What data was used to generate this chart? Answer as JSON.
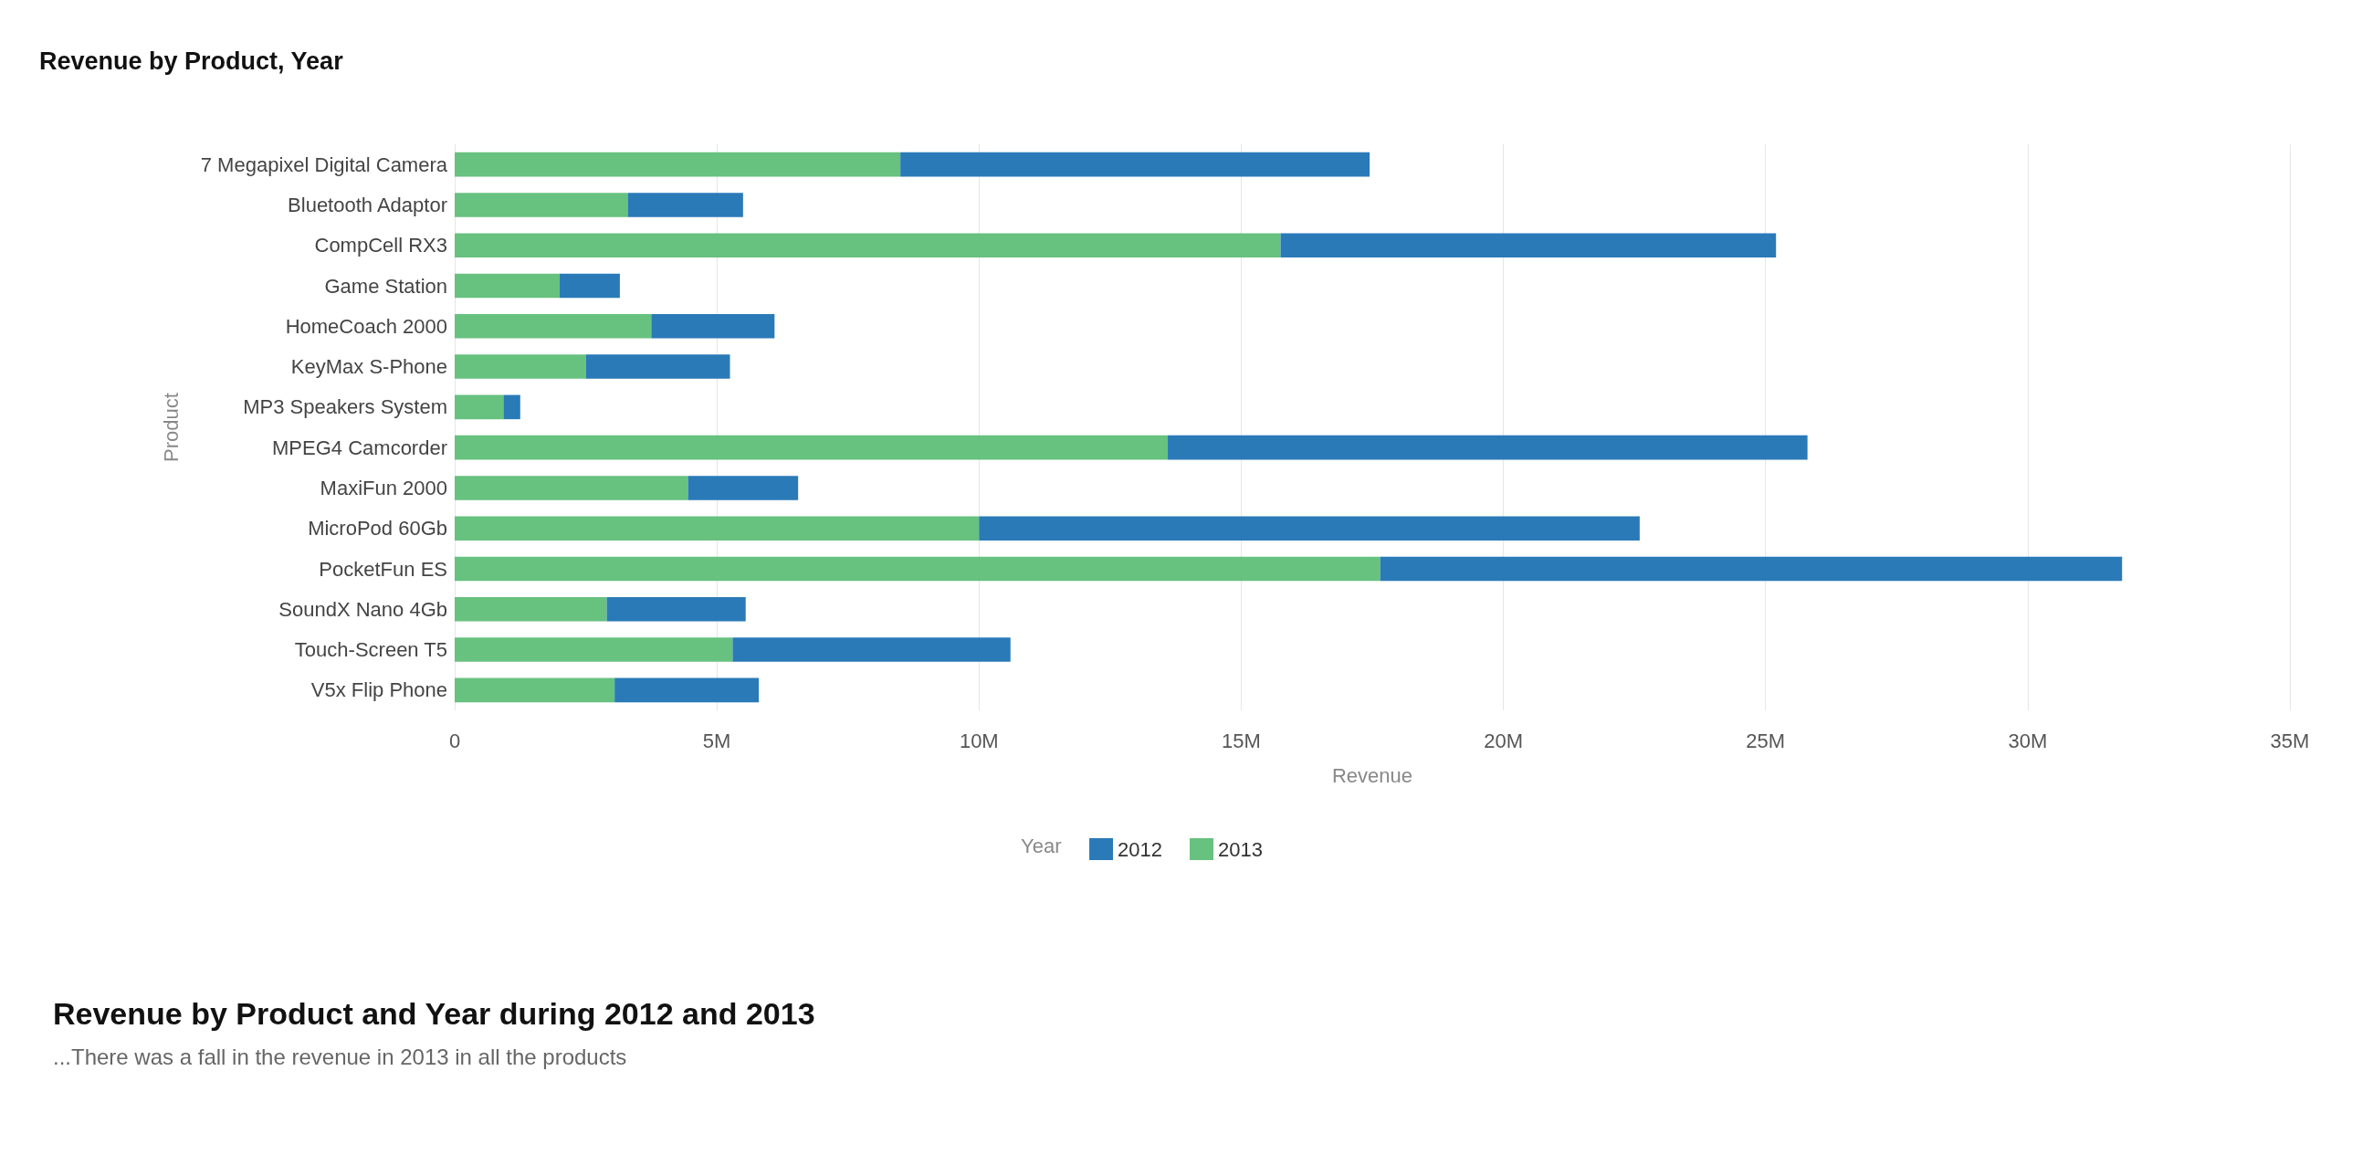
{
  "chart_data": {
    "type": "bar",
    "orientation": "horizontal",
    "stacked": true,
    "title": "Revenue by Product, Year",
    "xlabel": "Revenue",
    "ylabel": "Product",
    "legend_title": "Year",
    "legend": "bottom",
    "grid": "x",
    "categories": [
      "7 Megapixel Digital Camera",
      "Bluetooth Adaptor",
      "CompCell RX3",
      "Game Station",
      "HomeCoach 2000",
      "KeyMax S-Phone",
      "MP3 Speakers System",
      "MPEG4 Camcorder",
      "MaxiFun 2000",
      "MicroPod 60Gb",
      "PocketFun ES",
      "SoundX Nano 4Gb",
      "Touch-Screen T5",
      "V5x Flip Phone"
    ],
    "series": [
      {
        "name": "2013",
        "color": "#67c17f",
        "values": [
          8500000,
          3300000,
          15750000,
          2000000,
          3750000,
          2500000,
          930000,
          13600000,
          4450000,
          10000000,
          17650000,
          2900000,
          5300000,
          3050000
        ]
      },
      {
        "name": "2012",
        "color": "#2a7ab8",
        "values": [
          8950000,
          2200000,
          9450000,
          1150000,
          2350000,
          2750000,
          320000,
          12200000,
          2100000,
          12600000,
          14150000,
          2650000,
          5300000,
          2750000
        ]
      }
    ],
    "xlim": [
      0,
      35000000
    ],
    "xticks": [
      {
        "value": 0,
        "label": "0"
      },
      {
        "value": 5000000,
        "label": "5M"
      },
      {
        "value": 10000000,
        "label": "10M"
      },
      {
        "value": 15000000,
        "label": "15M"
      },
      {
        "value": 20000000,
        "label": "20M"
      },
      {
        "value": 25000000,
        "label": "25M"
      },
      {
        "value": 30000000,
        "label": "30M"
      },
      {
        "value": 35000000,
        "label": "35M"
      }
    ],
    "annotations": [
      "Revenue by Product and Year during 2012 and 2013",
      "...There was a fall in the revenue in 2013 in all the products"
    ]
  }
}
